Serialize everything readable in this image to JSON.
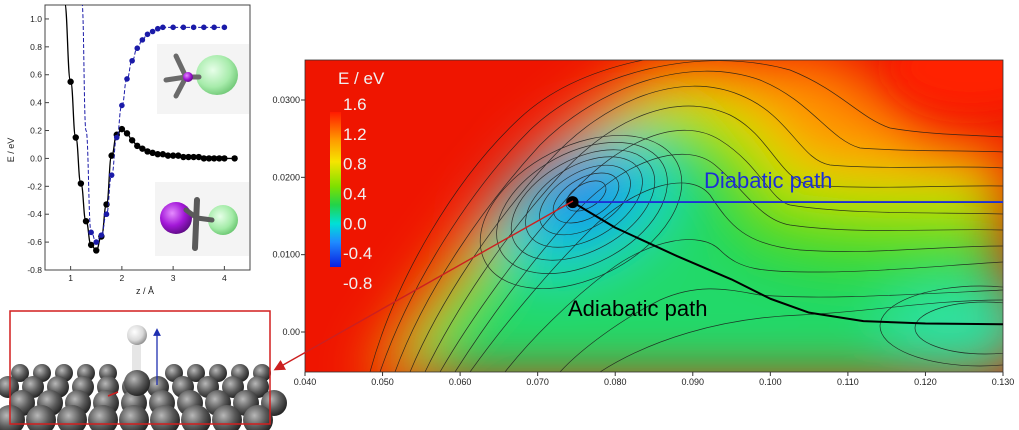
{
  "chart_data": [
    {
      "type": "line",
      "xlabel": "z / Å",
      "ylabel": "E / eV",
      "xlim": [
        0.5,
        4.5
      ],
      "ylim": [
        -0.8,
        1.1
      ],
      "x_ticks": [
        "1",
        "2",
        "3",
        "4"
      ],
      "x_tick_values": [
        1,
        2,
        3,
        4
      ],
      "y_ticks": [
        "-0.8",
        "-0.6",
        "-0.4",
        "-0.2",
        "0.0",
        "0.2",
        "0.4",
        "0.6",
        "0.8",
        "1.0"
      ],
      "y_tick_values": [
        -0.8,
        -0.6,
        -0.4,
        -0.2,
        0.0,
        0.2,
        0.4,
        0.6,
        0.8,
        1.0
      ],
      "grid": false,
      "series": [
        {
          "style": "solid",
          "color": "#000000",
          "x": [
            1.0,
            1.1,
            1.2,
            1.3,
            1.4,
            1.5,
            1.6,
            1.7,
            1.8,
            1.9,
            2.0,
            2.1,
            2.2,
            2.3,
            2.4,
            2.5,
            2.6,
            2.7,
            2.8,
            2.9,
            3.0,
            3.1,
            3.2,
            3.3,
            3.4,
            3.5,
            3.6,
            3.7,
            3.8,
            3.9,
            4.0,
            4.2
          ],
          "y": [
            0.55,
            0.15,
            -0.18,
            -0.45,
            -0.62,
            -0.66,
            -0.56,
            -0.33,
            0.02,
            0.17,
            0.21,
            0.18,
            0.13,
            0.09,
            0.07,
            0.05,
            0.04,
            0.03,
            0.03,
            0.02,
            0.02,
            0.02,
            0.01,
            0.01,
            0.01,
            0.01,
            0.0,
            0.0,
            0.0,
            0.0,
            0.0,
            0.0
          ]
        },
        {
          "style": "dashed",
          "color": "#1a1aa8",
          "x": [
            1.4,
            1.5,
            1.6,
            1.7,
            1.8,
            1.9,
            2.0,
            2.1,
            2.2,
            2.3,
            2.4,
            2.5,
            2.6,
            2.7,
            2.8,
            3.0,
            3.2,
            3.4,
            3.6,
            3.8,
            4.0
          ],
          "y": [
            -0.53,
            -0.6,
            -0.55,
            -0.4,
            -0.12,
            0.15,
            0.38,
            0.57,
            0.7,
            0.79,
            0.85,
            0.89,
            0.91,
            0.93,
            0.94,
            0.94,
            0.94,
            0.94,
            0.94,
            0.94,
            0.94
          ]
        }
      ]
    },
    {
      "type": "heatmap",
      "colorbar_label": "E / eV",
      "colorbar_ticks": [
        "1.6",
        "1.2",
        "0.8",
        "0.4",
        "0.0",
        "-0.4",
        "-0.8"
      ],
      "colorbar_tick_values": [
        1.6,
        1.2,
        0.8,
        0.4,
        0.0,
        -0.4,
        -0.8
      ],
      "colorbar_range": [
        -0.8,
        1.6
      ],
      "xlim": [
        0.04,
        0.13
      ],
      "ylim": [
        0.0,
        0.035
      ],
      "x_ticks": [
        "0.040",
        "0.050",
        "0.060",
        "0.070",
        "0.080",
        "0.090",
        "0.100",
        "0.110",
        "0.120",
        "0.130"
      ],
      "x_tick_values": [
        0.04,
        0.05,
        0.06,
        0.07,
        0.08,
        0.09,
        0.1,
        0.11,
        0.12,
        0.13
      ],
      "y_ticks": [
        "0.00",
        "0.0100",
        "0.0200",
        "0.0300"
      ],
      "y_tick_values": [
        0.0,
        0.01,
        0.02,
        0.03
      ],
      "minimum": {
        "x": 0.0745,
        "y": 0.0168
      },
      "diabatic_path": {
        "label": "Diabatic path",
        "color": "#1c2fd6",
        "x": [
          0.0745,
          0.13
        ],
        "y": [
          0.0168,
          0.0168
        ]
      },
      "adiabatic_path": {
        "label": "Adiabatic path",
        "color": "#000000",
        "x": [
          0.0745,
          0.08,
          0.088,
          0.095,
          0.1,
          0.105,
          0.112,
          0.12,
          0.13
        ],
        "y": [
          0.0168,
          0.0135,
          0.0098,
          0.0068,
          0.0043,
          0.0025,
          0.0014,
          0.0011,
          0.001
        ]
      }
    }
  ],
  "colors": {
    "frame_red": "#d21f1f",
    "arrow_red": "#cc2020",
    "diabatic": "#1c2fd6",
    "isosurface_green": "#9fe8a5",
    "atom_purple": "#b31fe0"
  }
}
